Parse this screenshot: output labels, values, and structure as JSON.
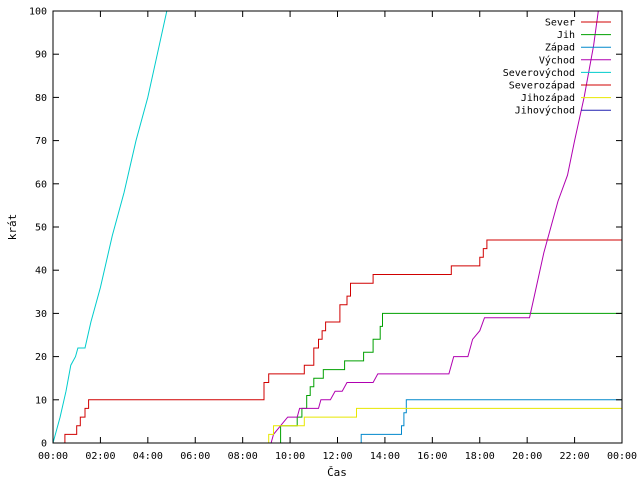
{
  "chart_data": {
    "type": "line",
    "xlabel": "Čas",
    "ylabel": "krát",
    "xlim": [
      0,
      24
    ],
    "ylim": [
      0,
      100
    ],
    "x_ticks": [
      "00:00",
      "02:00",
      "04:00",
      "06:00",
      "08:00",
      "10:00",
      "12:00",
      "14:00",
      "16:00",
      "18:00",
      "20:00",
      "22:00",
      "00:00"
    ],
    "y_ticks": [
      0,
      10,
      20,
      30,
      40,
      50,
      60,
      70,
      80,
      90,
      100
    ],
    "grid": false,
    "legend_position": "top-right",
    "series": [
      {
        "name": "Sever",
        "color": "#d00000",
        "step": true,
        "points": [
          [
            0.5,
            0
          ],
          [
            0.5,
            2
          ],
          [
            1.0,
            2
          ],
          [
            1.0,
            4
          ],
          [
            1.15,
            4
          ],
          [
            1.15,
            6
          ],
          [
            1.35,
            6
          ],
          [
            1.35,
            8
          ],
          [
            1.5,
            8
          ],
          [
            1.5,
            10
          ],
          [
            8.9,
            10
          ],
          [
            8.9,
            14
          ],
          [
            9.1,
            14
          ],
          [
            9.1,
            16
          ],
          [
            10.6,
            16
          ],
          [
            10.6,
            18
          ],
          [
            11.0,
            18
          ],
          [
            11.0,
            22
          ],
          [
            11.2,
            22
          ],
          [
            11.2,
            24
          ],
          [
            11.35,
            24
          ],
          [
            11.35,
            26
          ],
          [
            11.5,
            26
          ],
          [
            11.5,
            28
          ],
          [
            12.1,
            28
          ],
          [
            12.1,
            32
          ],
          [
            12.4,
            32
          ],
          [
            12.4,
            34
          ],
          [
            12.55,
            34
          ],
          [
            12.55,
            37
          ],
          [
            13.5,
            37
          ],
          [
            13.5,
            39
          ],
          [
            16.8,
            39
          ],
          [
            16.8,
            41
          ],
          [
            18.0,
            41
          ],
          [
            18.0,
            43
          ],
          [
            18.15,
            43
          ],
          [
            18.15,
            45
          ],
          [
            18.3,
            45
          ],
          [
            18.3,
            47
          ],
          [
            24,
            47
          ]
        ]
      },
      {
        "name": "Jih",
        "color": "#00a000",
        "step": true,
        "points": [
          [
            9.6,
            0
          ],
          [
            9.6,
            4
          ],
          [
            10.3,
            4
          ],
          [
            10.3,
            6
          ],
          [
            10.5,
            6
          ],
          [
            10.5,
            8
          ],
          [
            10.7,
            8
          ],
          [
            10.7,
            11
          ],
          [
            10.85,
            11
          ],
          [
            10.85,
            13
          ],
          [
            11.0,
            13
          ],
          [
            11.0,
            15
          ],
          [
            11.4,
            15
          ],
          [
            11.4,
            17
          ],
          [
            12.3,
            17
          ],
          [
            12.3,
            19
          ],
          [
            13.1,
            19
          ],
          [
            13.1,
            21
          ],
          [
            13.5,
            21
          ],
          [
            13.5,
            24
          ],
          [
            13.8,
            24
          ],
          [
            13.8,
            27
          ],
          [
            13.9,
            27
          ],
          [
            13.9,
            30
          ],
          [
            24,
            30
          ]
        ]
      },
      {
        "name": "Západ",
        "color": "#0088cc",
        "step": true,
        "points": [
          [
            13.0,
            0
          ],
          [
            13.0,
            2
          ],
          [
            14.7,
            2
          ],
          [
            14.7,
            4
          ],
          [
            14.8,
            4
          ],
          [
            14.8,
            7
          ],
          [
            14.9,
            7
          ],
          [
            14.9,
            10
          ],
          [
            24,
            10
          ]
        ]
      },
      {
        "name": "Východ",
        "color": "#b000b0",
        "step": false,
        "points": [
          [
            9.2,
            0
          ],
          [
            9.3,
            2
          ],
          [
            9.6,
            4
          ],
          [
            9.9,
            6
          ],
          [
            10.3,
            6
          ],
          [
            10.4,
            8
          ],
          [
            11.2,
            8
          ],
          [
            11.3,
            10
          ],
          [
            11.7,
            10
          ],
          [
            11.9,
            12
          ],
          [
            12.2,
            12
          ],
          [
            12.4,
            14
          ],
          [
            13.5,
            14
          ],
          [
            13.7,
            16
          ],
          [
            16.7,
            16
          ],
          [
            16.9,
            20
          ],
          [
            17.5,
            20
          ],
          [
            17.7,
            24
          ],
          [
            18.0,
            26
          ],
          [
            18.2,
            29
          ],
          [
            20.1,
            29
          ],
          [
            20.3,
            34
          ],
          [
            20.7,
            44
          ],
          [
            21.0,
            50
          ],
          [
            21.3,
            56
          ],
          [
            21.7,
            62
          ],
          [
            22.0,
            70
          ],
          [
            22.4,
            80
          ],
          [
            22.8,
            92
          ],
          [
            23.0,
            100
          ]
        ]
      },
      {
        "name": "Severovýchod",
        "color": "#00cccc",
        "step": false,
        "points": [
          [
            0.0,
            0
          ],
          [
            0.3,
            6
          ],
          [
            0.55,
            12
          ],
          [
            0.75,
            18
          ],
          [
            0.95,
            20
          ],
          [
            1.05,
            22
          ],
          [
            1.35,
            22
          ],
          [
            1.6,
            28
          ],
          [
            2.0,
            36
          ],
          [
            2.5,
            48
          ],
          [
            3.0,
            58
          ],
          [
            3.5,
            70
          ],
          [
            4.0,
            80
          ],
          [
            4.4,
            90
          ],
          [
            4.8,
            100
          ]
        ]
      },
      {
        "name": "Severozápad",
        "color": "#d00000",
        "step": true,
        "points": []
      },
      {
        "name": "Jihozápad",
        "color": "#e8e800",
        "step": true,
        "points": [
          [
            9.1,
            0
          ],
          [
            9.1,
            2
          ],
          [
            9.3,
            2
          ],
          [
            9.3,
            4
          ],
          [
            10.6,
            4
          ],
          [
            10.6,
            6
          ],
          [
            12.8,
            6
          ],
          [
            12.8,
            8
          ],
          [
            24,
            8
          ]
        ]
      },
      {
        "name": "Jihovýchod",
        "color": "#2020b0",
        "step": true,
        "points": []
      }
    ]
  }
}
